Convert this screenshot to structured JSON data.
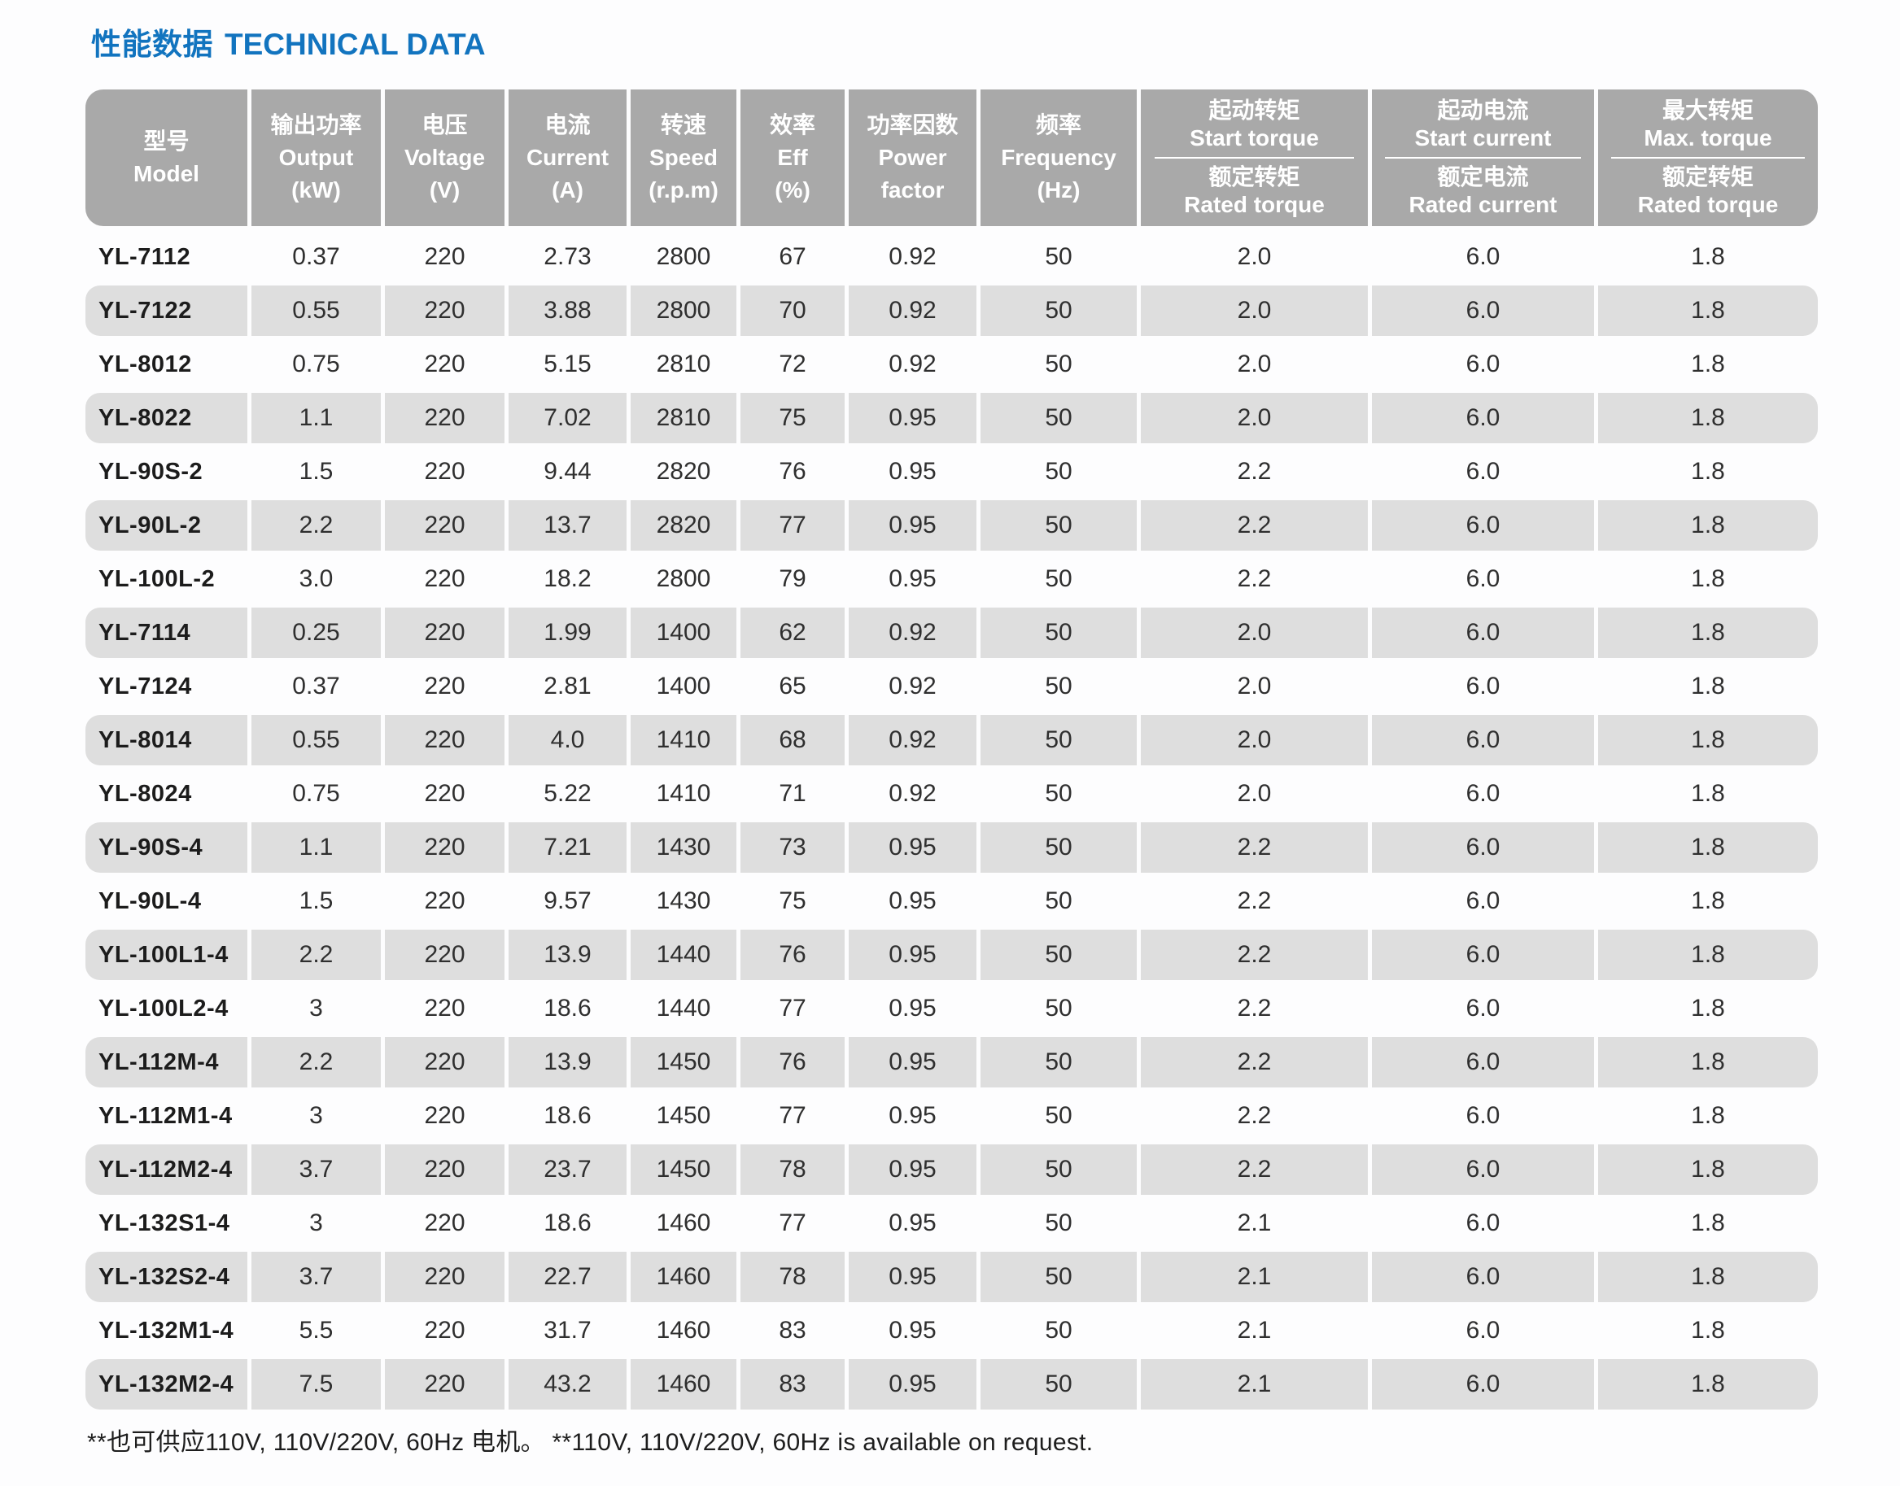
{
  "page": {
    "title_cn": "性能数据",
    "title_en": "TECHNICAL DATA",
    "footnote": "**也可供应110V, 110V/220V, 60Hz 电机。 **110V, 110V/220V, 60Hz is available on request."
  },
  "colors": {
    "title_blue": "#1274bf",
    "header_gray": "#a9a9a9",
    "stripe_gray": "#dedede",
    "header_text": "#ffffff",
    "body_text": "#2f2f2f"
  },
  "table": {
    "columns": [
      {
        "id": "model",
        "cn": "型号",
        "en": "Model"
      },
      {
        "id": "output",
        "cn": "输出功率",
        "en": "Output",
        "unit": "(kW)"
      },
      {
        "id": "voltage",
        "cn": "电压",
        "en": "Voltage",
        "unit": "(V)"
      },
      {
        "id": "current",
        "cn": "电流",
        "en": "Current",
        "unit": "(A)"
      },
      {
        "id": "speed",
        "cn": "转速",
        "en": "Speed",
        "unit": "(r.p.m)"
      },
      {
        "id": "eff",
        "cn": "效率",
        "en": "Eff",
        "unit": "(%)"
      },
      {
        "id": "power_factor",
        "cn": "功率因数",
        "en": "Power factor"
      },
      {
        "id": "frequency",
        "cn": "频率",
        "en": "Frequency",
        "unit": "(Hz)"
      },
      {
        "id": "start_torque",
        "split": true,
        "top": {
          "cn": "起动转矩",
          "en": "Start torque"
        },
        "bottom": {
          "cn": "额定转矩",
          "en": "Rated torque"
        }
      },
      {
        "id": "start_current",
        "split": true,
        "top": {
          "cn": "起动电流",
          "en": "Start current"
        },
        "bottom": {
          "cn": "额定电流",
          "en": "Rated current"
        }
      },
      {
        "id": "max_torque",
        "split": true,
        "top": {
          "cn": "最大转矩",
          "en": "Max. torque"
        },
        "bottom": {
          "cn": "额定转矩",
          "en": "Rated torque"
        }
      }
    ],
    "rows": [
      [
        "YL-7112",
        "0.37",
        "220",
        "2.73",
        "2800",
        "67",
        "0.92",
        "50",
        "2.0",
        "6.0",
        "1.8"
      ],
      [
        "YL-7122",
        "0.55",
        "220",
        "3.88",
        "2800",
        "70",
        "0.92",
        "50",
        "2.0",
        "6.0",
        "1.8"
      ],
      [
        "YL-8012",
        "0.75",
        "220",
        "5.15",
        "2810",
        "72",
        "0.92",
        "50",
        "2.0",
        "6.0",
        "1.8"
      ],
      [
        "YL-8022",
        "1.1",
        "220",
        "7.02",
        "2810",
        "75",
        "0.95",
        "50",
        "2.0",
        "6.0",
        "1.8"
      ],
      [
        "YL-90S-2",
        "1.5",
        "220",
        "9.44",
        "2820",
        "76",
        "0.95",
        "50",
        "2.2",
        "6.0",
        "1.8"
      ],
      [
        "YL-90L-2",
        "2.2",
        "220",
        "13.7",
        "2820",
        "77",
        "0.95",
        "50",
        "2.2",
        "6.0",
        "1.8"
      ],
      [
        "YL-100L-2",
        "3.0",
        "220",
        "18.2",
        "2800",
        "79",
        "0.95",
        "50",
        "2.2",
        "6.0",
        "1.8"
      ],
      [
        "YL-7114",
        "0.25",
        "220",
        "1.99",
        "1400",
        "62",
        "0.92",
        "50",
        "2.0",
        "6.0",
        "1.8"
      ],
      [
        "YL-7124",
        "0.37",
        "220",
        "2.81",
        "1400",
        "65",
        "0.92",
        "50",
        "2.0",
        "6.0",
        "1.8"
      ],
      [
        "YL-8014",
        "0.55",
        "220",
        "4.0",
        "1410",
        "68",
        "0.92",
        "50",
        "2.0",
        "6.0",
        "1.8"
      ],
      [
        "YL-8024",
        "0.75",
        "220",
        "5.22",
        "1410",
        "71",
        "0.92",
        "50",
        "2.0",
        "6.0",
        "1.8"
      ],
      [
        "YL-90S-4",
        "1.1",
        "220",
        "7.21",
        "1430",
        "73",
        "0.95",
        "50",
        "2.2",
        "6.0",
        "1.8"
      ],
      [
        "YL-90L-4",
        "1.5",
        "220",
        "9.57",
        "1430",
        "75",
        "0.95",
        "50",
        "2.2",
        "6.0",
        "1.8"
      ],
      [
        "YL-100L1-4",
        "2.2",
        "220",
        "13.9",
        "1440",
        "76",
        "0.95",
        "50",
        "2.2",
        "6.0",
        "1.8"
      ],
      [
        "YL-100L2-4",
        "3",
        "220",
        "18.6",
        "1440",
        "77",
        "0.95",
        "50",
        "2.2",
        "6.0",
        "1.8"
      ],
      [
        "YL-112M-4",
        "2.2",
        "220",
        "13.9",
        "1450",
        "76",
        "0.95",
        "50",
        "2.2",
        "6.0",
        "1.8"
      ],
      [
        "YL-112M1-4",
        "3",
        "220",
        "18.6",
        "1450",
        "77",
        "0.95",
        "50",
        "2.2",
        "6.0",
        "1.8"
      ],
      [
        "YL-112M2-4",
        "3.7",
        "220",
        "23.7",
        "1450",
        "78",
        "0.95",
        "50",
        "2.2",
        "6.0",
        "1.8"
      ],
      [
        "YL-132S1-4",
        "3",
        "220",
        "18.6",
        "1460",
        "77",
        "0.95",
        "50",
        "2.1",
        "6.0",
        "1.8"
      ],
      [
        "YL-132S2-4",
        "3.7",
        "220",
        "22.7",
        "1460",
        "78",
        "0.95",
        "50",
        "2.1",
        "6.0",
        "1.8"
      ],
      [
        "YL-132M1-4",
        "5.5",
        "220",
        "31.7",
        "1460",
        "83",
        "0.95",
        "50",
        "2.1",
        "6.0",
        "1.8"
      ],
      [
        "YL-132M2-4",
        "7.5",
        "220",
        "43.2",
        "1460",
        "83",
        "0.95",
        "50",
        "2.1",
        "6.0",
        "1.8"
      ]
    ]
  }
}
